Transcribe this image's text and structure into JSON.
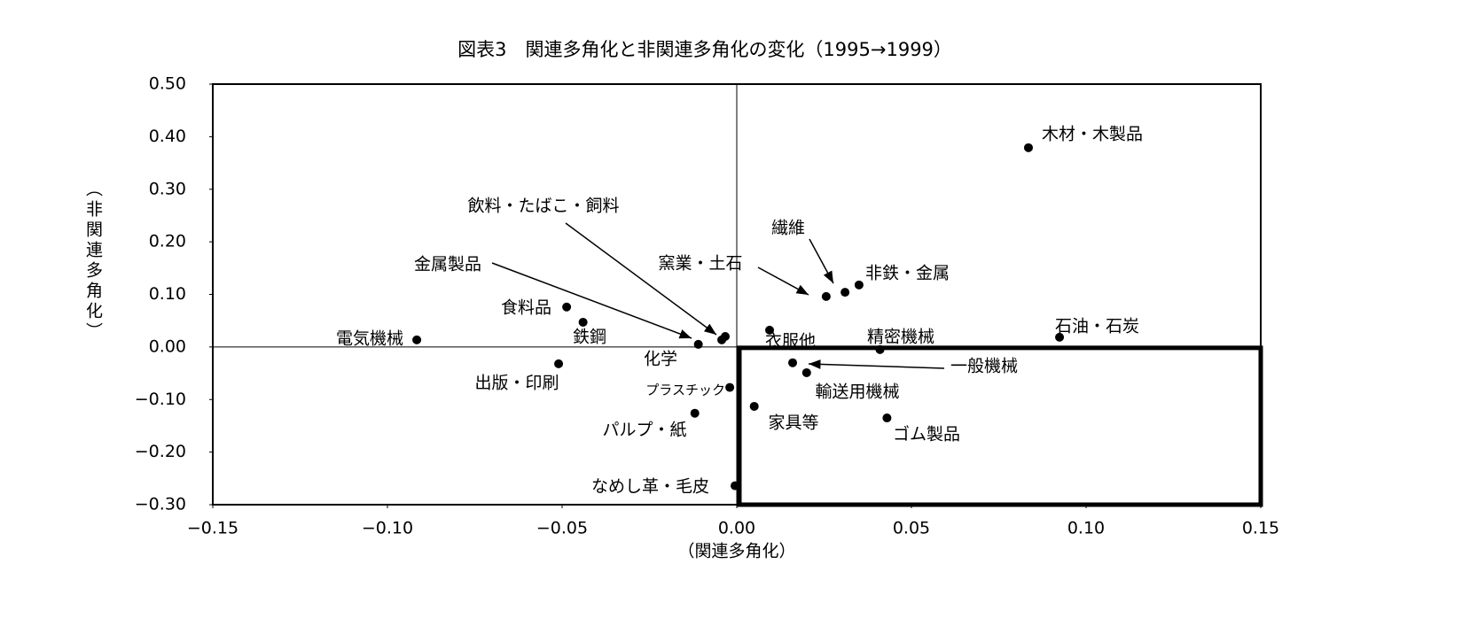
{
  "chart_data": {
    "type": "scatter",
    "title": "図表3　関連多角化と非関連多角化の変化（1995→1999）",
    "x_label": "（関連多角化）",
    "y_label": "（非関連多角化）",
    "labels": [
      "木材・木製品",
      "電気機械",
      "食料品",
      "鉄鋼",
      "出版・印刷",
      "金属製品",
      "飲料・たばこ・飼料",
      "化学",
      "プラスチック",
      "パルプ・紙",
      "なめし革・毛皮",
      "衣服他",
      "家具等",
      "一般機械",
      "輸送用機械",
      "窯業・土石",
      "繊維",
      "非鉄・金属",
      "精密機械",
      "ゴム製品",
      "石油・石炭"
    ],
    "x": [
      0.0835,
      -0.0916,
      -0.0487,
      -0.044,
      -0.051,
      -0.011,
      -0.0033,
      -0.0043,
      -0.002,
      -0.012,
      -0.0005,
      0.0094,
      0.005,
      0.016,
      0.02,
      0.0256,
      0.031,
      0.035,
      0.041,
      0.043,
      0.0924
    ],
    "y": [
      0.379,
      0.0135,
      0.076,
      0.047,
      -0.032,
      0.005,
      0.02,
      0.0135,
      -0.077,
      -0.126,
      -0.264,
      0.032,
      -0.113,
      -0.03,
      -0.049,
      0.096,
      0.104,
      0.118,
      -0.005,
      -0.135,
      0.0185
    ],
    "color": "#000000",
    "xlim": [
      -0.15,
      0.15
    ],
    "ylim": [
      -0.3,
      0.5
    ],
    "xticks": [
      {
        "value": -0.15,
        "label": "−0.15"
      },
      {
        "value": -0.1,
        "label": "−0.10"
      },
      {
        "value": -0.05,
        "label": "−0.05"
      },
      {
        "value": 0,
        "label": "0.00"
      },
      {
        "value": 0.05,
        "label": "0.05"
      },
      {
        "value": 0.1,
        "label": "0.10"
      },
      {
        "value": 0.15,
        "label": "0.15"
      }
    ],
    "yticks": [
      {
        "value": 0.5,
        "label": "0.50"
      },
      {
        "value": 0.4,
        "label": "0.40"
      },
      {
        "value": 0.3,
        "label": "0.30"
      },
      {
        "value": 0.2,
        "label": "0.20"
      },
      {
        "value": 0.1,
        "label": "0.10"
      },
      {
        "value": 0,
        "label": "0.00"
      },
      {
        "value": -0.1,
        "label": "−0.10"
      },
      {
        "value": -0.2,
        "label": "−0.20"
      },
      {
        "value": -0.3,
        "label": "−0.30"
      }
    ]
  }
}
